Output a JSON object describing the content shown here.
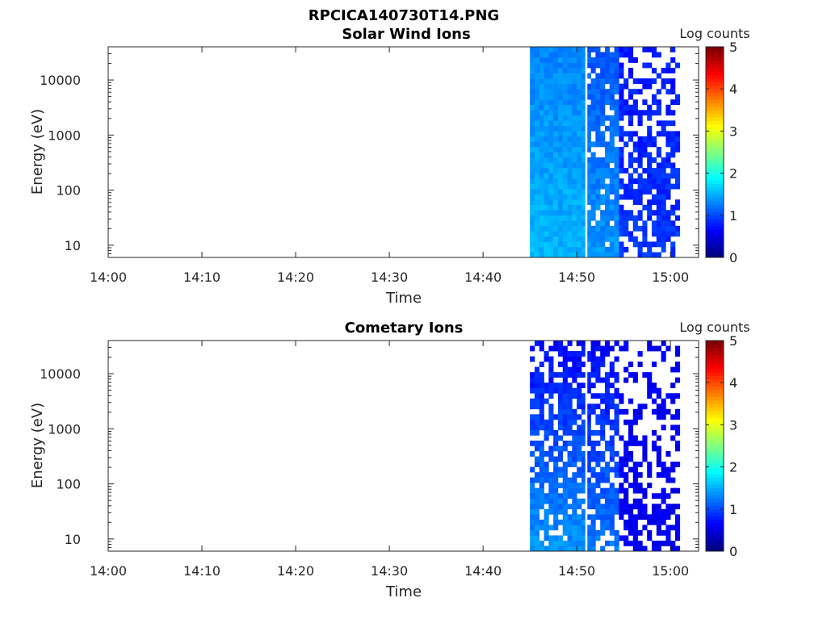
{
  "figure": {
    "title": "RPCICA140730T14.PNG"
  },
  "chart_data": [
    {
      "type": "heatmap",
      "title": "Solar Wind Ions",
      "xlabel": "Time",
      "ylabel": "Energy (eV)",
      "x_ticks": [
        "14:00",
        "14:10",
        "14:20",
        "14:30",
        "14:40",
        "14:50",
        "15:00"
      ],
      "xlim": [
        "14:00",
        "15:03"
      ],
      "y_scale": "log",
      "y_ticks": [
        10,
        100,
        1000,
        10000
      ],
      "ylim": [
        6,
        40000
      ],
      "colorbar": {
        "label": "Log counts",
        "ticks": [
          0,
          1,
          2,
          3,
          4,
          5
        ],
        "range": [
          0,
          5
        ],
        "colormap": "jet"
      },
      "data_segments": [
        {
          "start": "14:45",
          "end": "14:51",
          "fill_fraction": 1.0,
          "level_low_energy": 0.7,
          "level_high_energy": 0.55
        },
        {
          "start": "14:51",
          "end": "14:54:30",
          "fill_fraction": 0.8,
          "level_low_energy": 0.6,
          "level_high_energy": 0.4
        },
        {
          "start": "14:54:30",
          "end": "15:01",
          "fill_fraction": 0.45,
          "level_low_energy": 0.3,
          "level_high_energy": 0.2
        }
      ],
      "gap_times": [
        "14:51"
      ]
    },
    {
      "type": "heatmap",
      "title": "Cometary Ions",
      "xlabel": "Time",
      "ylabel": "Energy (eV)",
      "x_ticks": [
        "14:00",
        "14:10",
        "14:20",
        "14:30",
        "14:40",
        "14:50",
        "15:00"
      ],
      "xlim": [
        "14:00",
        "15:03"
      ],
      "y_scale": "log",
      "y_ticks": [
        10,
        100,
        1000,
        10000
      ],
      "ylim": [
        6,
        40000
      ],
      "colorbar": {
        "label": "Log counts",
        "ticks": [
          0,
          1,
          2,
          3,
          4,
          5
        ],
        "range": [
          0,
          5
        ],
        "colormap": "jet"
      },
      "data_segments": [
        {
          "start": "14:45",
          "end": "14:51",
          "fill_fraction": 0.7,
          "level_low_energy": 0.6,
          "level_high_energy": 0.15
        },
        {
          "start": "14:51",
          "end": "14:54:30",
          "fill_fraction": 0.6,
          "level_low_energy": 0.5,
          "level_high_energy": 0.15
        },
        {
          "start": "14:54:30",
          "end": "15:01",
          "fill_fraction": 0.2,
          "level_low_energy": 0.1,
          "level_high_energy": 0.1
        }
      ],
      "gap_times": [
        "14:51"
      ]
    }
  ]
}
